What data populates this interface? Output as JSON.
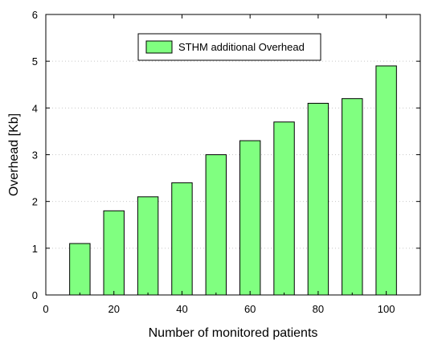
{
  "chart_data": {
    "type": "bar",
    "title": "",
    "xlabel": "Number of monitored patients",
    "ylabel": "Overhead [Kb]",
    "x": [
      10,
      20,
      30,
      40,
      50,
      60,
      70,
      80,
      90,
      100
    ],
    "series": [
      {
        "name": "STHM additional Overhead",
        "values": [
          1.1,
          1.8,
          2.1,
          2.4,
          3.0,
          3.3,
          3.7,
          4.1,
          4.2,
          4.9
        ],
        "color": "#80ff80"
      }
    ],
    "xlim": [
      0,
      110
    ],
    "ylim": [
      0,
      6
    ],
    "xticks": [
      "0",
      "20",
      "40",
      "60",
      "80",
      "100"
    ],
    "yticks": [
      "0",
      "1",
      "2",
      "3",
      "4",
      "5",
      "6"
    ],
    "bar_width": 6,
    "grid": "horizontal dotted",
    "legend_position": "top-center"
  }
}
